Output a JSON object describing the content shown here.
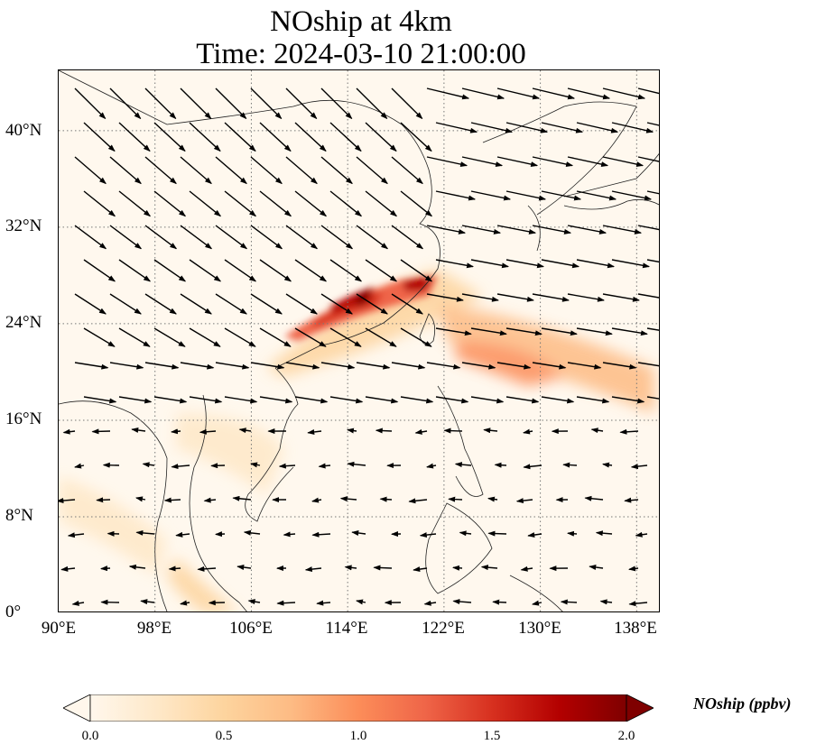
{
  "title_line1": "NOship at 4km",
  "title_line2": "Time: 2024-03-10 21:00:00",
  "map": {
    "lon_range": [
      90,
      140
    ],
    "lat_range": [
      0,
      45
    ],
    "lon_ticks": [
      "90°E",
      "98°E",
      "106°E",
      "114°E",
      "122°E",
      "130°E",
      "138°E"
    ],
    "lat_ticks": [
      "0°",
      "8°N",
      "16°N",
      "24°N",
      "32°N",
      "40°N"
    ],
    "gridlines": "dotted",
    "colormap": "OrRd",
    "vectors": "wind arrows"
  },
  "colorbar": {
    "label": "NOship (ppbv)",
    "ticks": [
      "0.0",
      "0.5",
      "1.0",
      "1.5",
      "2.0"
    ],
    "range": [
      0.0,
      2.0
    ],
    "extend": "both",
    "colors": [
      "#fff7ec",
      "#fee8c8",
      "#fdd49e",
      "#fdbb84",
      "#fc8d59",
      "#ef6548",
      "#d7301f",
      "#b30000",
      "#7f0000"
    ]
  }
}
